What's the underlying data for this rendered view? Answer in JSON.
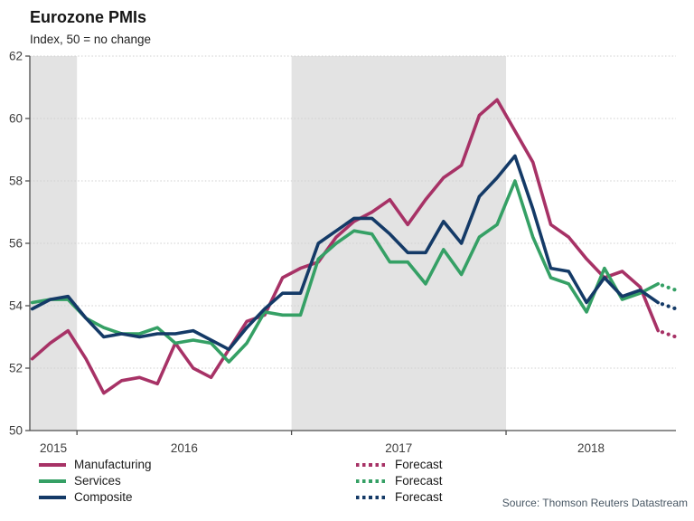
{
  "chart_data": {
    "type": "line",
    "title": "Eurozone PMIs",
    "subtitle": "Index, 50 = no change",
    "ylim": [
      50,
      62
    ],
    "yticks": [
      50,
      52,
      54,
      56,
      58,
      60,
      62
    ],
    "grid": "dotted-horizontal",
    "start_year": 2015,
    "start_month": 10,
    "year_labels": [
      "2015",
      "2016",
      "2017",
      "2018"
    ],
    "shaded_years": [
      2015,
      2017
    ],
    "legend_position": "bottom",
    "series": [
      {
        "name": "Manufacturing",
        "key": "manufacturing",
        "values": [
          52.3,
          52.8,
          53.2,
          52.3,
          51.2,
          51.6,
          51.7,
          51.5,
          52.8,
          52.0,
          51.7,
          52.6,
          53.5,
          53.7,
          54.9,
          55.2,
          55.4,
          56.2,
          56.7,
          57.0,
          57.4,
          56.6,
          57.4,
          58.1,
          58.5,
          60.1,
          60.6,
          59.6,
          58.6,
          56.6,
          56.2,
          55.5,
          54.9,
          55.1,
          54.6,
          53.2
        ],
        "forecast_value": 53.0
      },
      {
        "name": "Services",
        "key": "services",
        "values": [
          54.1,
          54.2,
          54.2,
          53.6,
          53.3,
          53.1,
          53.1,
          53.3,
          52.8,
          52.9,
          52.8,
          52.2,
          52.8,
          53.8,
          53.7,
          53.7,
          55.5,
          56.0,
          56.4,
          56.3,
          55.4,
          55.4,
          54.7,
          55.8,
          55.0,
          56.2,
          56.6,
          58.0,
          56.2,
          54.9,
          54.7,
          53.8,
          55.2,
          54.2,
          54.4,
          54.7
        ],
        "forecast_value": 54.5
      },
      {
        "name": "Composite",
        "key": "composite",
        "values": [
          53.9,
          54.2,
          54.3,
          53.6,
          53.0,
          53.1,
          53.0,
          53.1,
          53.1,
          53.2,
          52.9,
          52.6,
          53.3,
          53.9,
          54.4,
          54.4,
          56.0,
          56.4,
          56.8,
          56.8,
          56.3,
          55.7,
          55.7,
          56.7,
          56.0,
          57.5,
          58.1,
          58.8,
          57.1,
          55.2,
          55.1,
          54.1,
          54.9,
          54.3,
          54.5,
          54.1
        ],
        "forecast_value": 53.9
      }
    ]
  },
  "colors": {
    "manufacturing": "#a73266",
    "services": "#35a065",
    "composite": "#143a67",
    "band": "#e3e3e3",
    "grid": "#cfcfcf",
    "axis": "#4d4d4d",
    "tick_text": "#3d3d3d"
  },
  "legend": {
    "left": [
      {
        "label": "Manufacturing",
        "key": "manufacturing",
        "style": "solid"
      },
      {
        "label": "Services",
        "key": "services",
        "style": "solid"
      },
      {
        "label": "Composite",
        "key": "composite",
        "style": "solid"
      }
    ],
    "right": [
      {
        "label": "Forecast",
        "key": "manufacturing",
        "style": "dotted"
      },
      {
        "label": "Forecast",
        "key": "services",
        "style": "dotted"
      },
      {
        "label": "Forecast",
        "key": "composite",
        "style": "dotted"
      }
    ]
  },
  "source": "Source: Thomson Reuters Datastream"
}
